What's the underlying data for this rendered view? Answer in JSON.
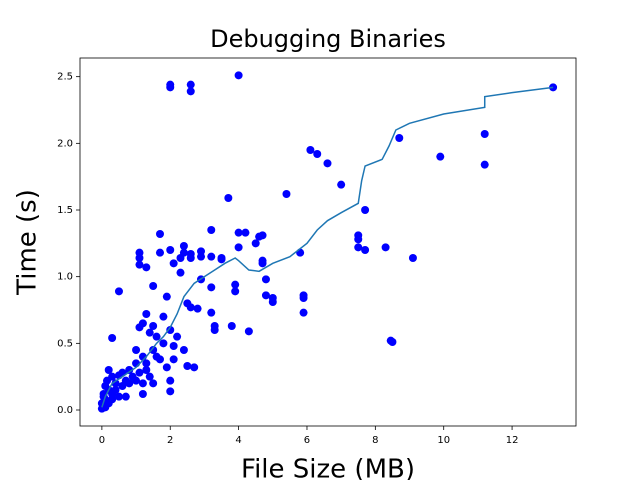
{
  "chart_data": {
    "type": "scatter",
    "title": "Debugging Binaries",
    "x_label": "File Size (MB)",
    "y_label": "Time (s)",
    "xlim": [
      -0.64,
      13.87
    ],
    "ylim": [
      -0.12,
      2.64
    ],
    "xticks": [
      0,
      2,
      4,
      6,
      8,
      10,
      12
    ],
    "yticks": [
      {
        "value": 0,
        "label": "0.0"
      },
      0.5,
      {
        "value": 1,
        "label": "1.0"
      },
      1.5,
      {
        "value": 2,
        "label": "2.0"
      },
      2.5
    ],
    "series": [
      {
        "type": "scatter",
        "color": "#0000ff",
        "x": [
          2.0,
          2.0,
          2.6,
          2.6,
          4.0,
          13.2,
          11.2,
          8.7,
          11.2,
          9.9,
          6.1,
          6.3,
          6.6,
          7.0,
          5.4,
          3.7,
          7.7,
          7.5,
          7.5,
          7.5,
          7.7,
          8.3,
          9.1,
          8.5,
          8.45,
          5.8,
          5.9,
          5.9,
          5.9,
          5.0,
          5.0,
          4.8,
          4.8,
          4.7,
          4.7,
          4.6,
          4.7,
          4.5,
          4.2,
          4.0,
          4.0,
          3.9,
          3.9,
          3.8,
          4.3,
          3.3,
          3.3,
          3.2,
          3.2,
          3.5,
          3.5,
          3.2,
          3.2,
          2.9,
          2.9,
          2.6,
          2.6,
          2.4,
          2.4,
          2.3,
          2.3,
          2.5,
          2.6,
          2.8,
          2.9,
          1.7,
          1.7,
          2.0,
          2.1,
          1.1,
          1.1,
          1.1,
          1.3,
          1.5,
          1.9,
          1.8,
          0.5,
          0.3,
          1.3,
          1.1,
          1.2,
          1.5,
          1.6,
          1.4,
          2.0,
          2.2,
          2.1,
          2.4,
          2.5,
          2.7,
          2.0,
          2.0,
          1.2,
          1.0,
          1.0,
          1.2,
          1.3,
          1.4,
          1.5,
          1.7,
          1.9,
          2.1,
          0.8,
          0.7,
          0.6,
          0.5,
          0.4,
          0.3,
          0.2,
          0.1,
          0.0,
          0.05,
          0.1,
          0.15,
          0.2,
          0.3,
          0.4,
          0.5,
          0.6,
          0.7,
          0.8,
          0.9,
          1.0,
          1.1,
          1.2,
          1.3,
          0.0,
          0.05,
          0.1,
          0.2,
          0.3,
          1.5,
          1.6,
          1.8
        ],
        "values": [
          2.44,
          2.42,
          2.44,
          2.39,
          2.51,
          2.42,
          2.07,
          2.04,
          1.84,
          1.9,
          1.95,
          1.92,
          1.85,
          1.69,
          1.62,
          1.59,
          1.5,
          1.31,
          1.28,
          1.22,
          1.2,
          1.22,
          1.14,
          0.51,
          0.52,
          1.18,
          0.86,
          0.84,
          0.73,
          0.84,
          0.81,
          0.86,
          0.98,
          1.12,
          1.1,
          1.3,
          1.31,
          1.25,
          1.33,
          1.33,
          1.22,
          0.94,
          0.89,
          0.63,
          0.59,
          0.63,
          0.6,
          1.35,
          1.15,
          1.13,
          1.14,
          0.73,
          0.92,
          1.19,
          1.15,
          1.14,
          1.17,
          1.23,
          1.18,
          1.03,
          1.14,
          0.8,
          0.77,
          0.76,
          0.98,
          1.32,
          1.18,
          1.2,
          1.1,
          1.18,
          1.14,
          1.09,
          1.07,
          0.93,
          0.85,
          0.7,
          0.89,
          0.54,
          0.72,
          0.62,
          0.65,
          0.63,
          0.55,
          0.58,
          0.6,
          0.55,
          0.48,
          0.45,
          0.33,
          0.32,
          0.22,
          0.14,
          0.12,
          0.45,
          0.35,
          0.4,
          0.3,
          0.25,
          0.2,
          0.38,
          0.32,
          0.38,
          0.3,
          0.22,
          0.28,
          0.1,
          0.15,
          0.08,
          0.05,
          0.02,
          0.01,
          0.1,
          0.18,
          0.22,
          0.3,
          0.25,
          0.2,
          0.26,
          0.18,
          0.1,
          0.2,
          0.25,
          0.22,
          0.28,
          0.2,
          0.35,
          0.05,
          0.12,
          0.08,
          0.15,
          0.12,
          0.45,
          0.4,
          0.5
        ]
      },
      {
        "type": "line",
        "color": "#1f77b4",
        "x": [
          0,
          0.1,
          0.3,
          0.6,
          1.0,
          1.3,
          1.6,
          1.8,
          2.0,
          2.2,
          2.4,
          2.7,
          3.0,
          3.3,
          3.6,
          3.9,
          4.0,
          4.3,
          4.6,
          5.0,
          5.5,
          6.0,
          6.3,
          6.6,
          7.0,
          7.5,
          7.6,
          7.7,
          8.2,
          8.4,
          8.6,
          9.0,
          10.0,
          11.2,
          11.2,
          12.0,
          13.2
        ],
        "values": [
          0.02,
          0.1,
          0.2,
          0.25,
          0.32,
          0.4,
          0.5,
          0.55,
          0.62,
          0.72,
          0.85,
          0.95,
          1.0,
          1.05,
          1.1,
          1.14,
          1.12,
          1.05,
          1.04,
          1.1,
          1.15,
          1.25,
          1.35,
          1.42,
          1.48,
          1.55,
          1.72,
          1.83,
          1.88,
          1.98,
          2.1,
          2.15,
          2.22,
          2.27,
          2.35,
          2.38,
          2.42
        ]
      }
    ]
  }
}
